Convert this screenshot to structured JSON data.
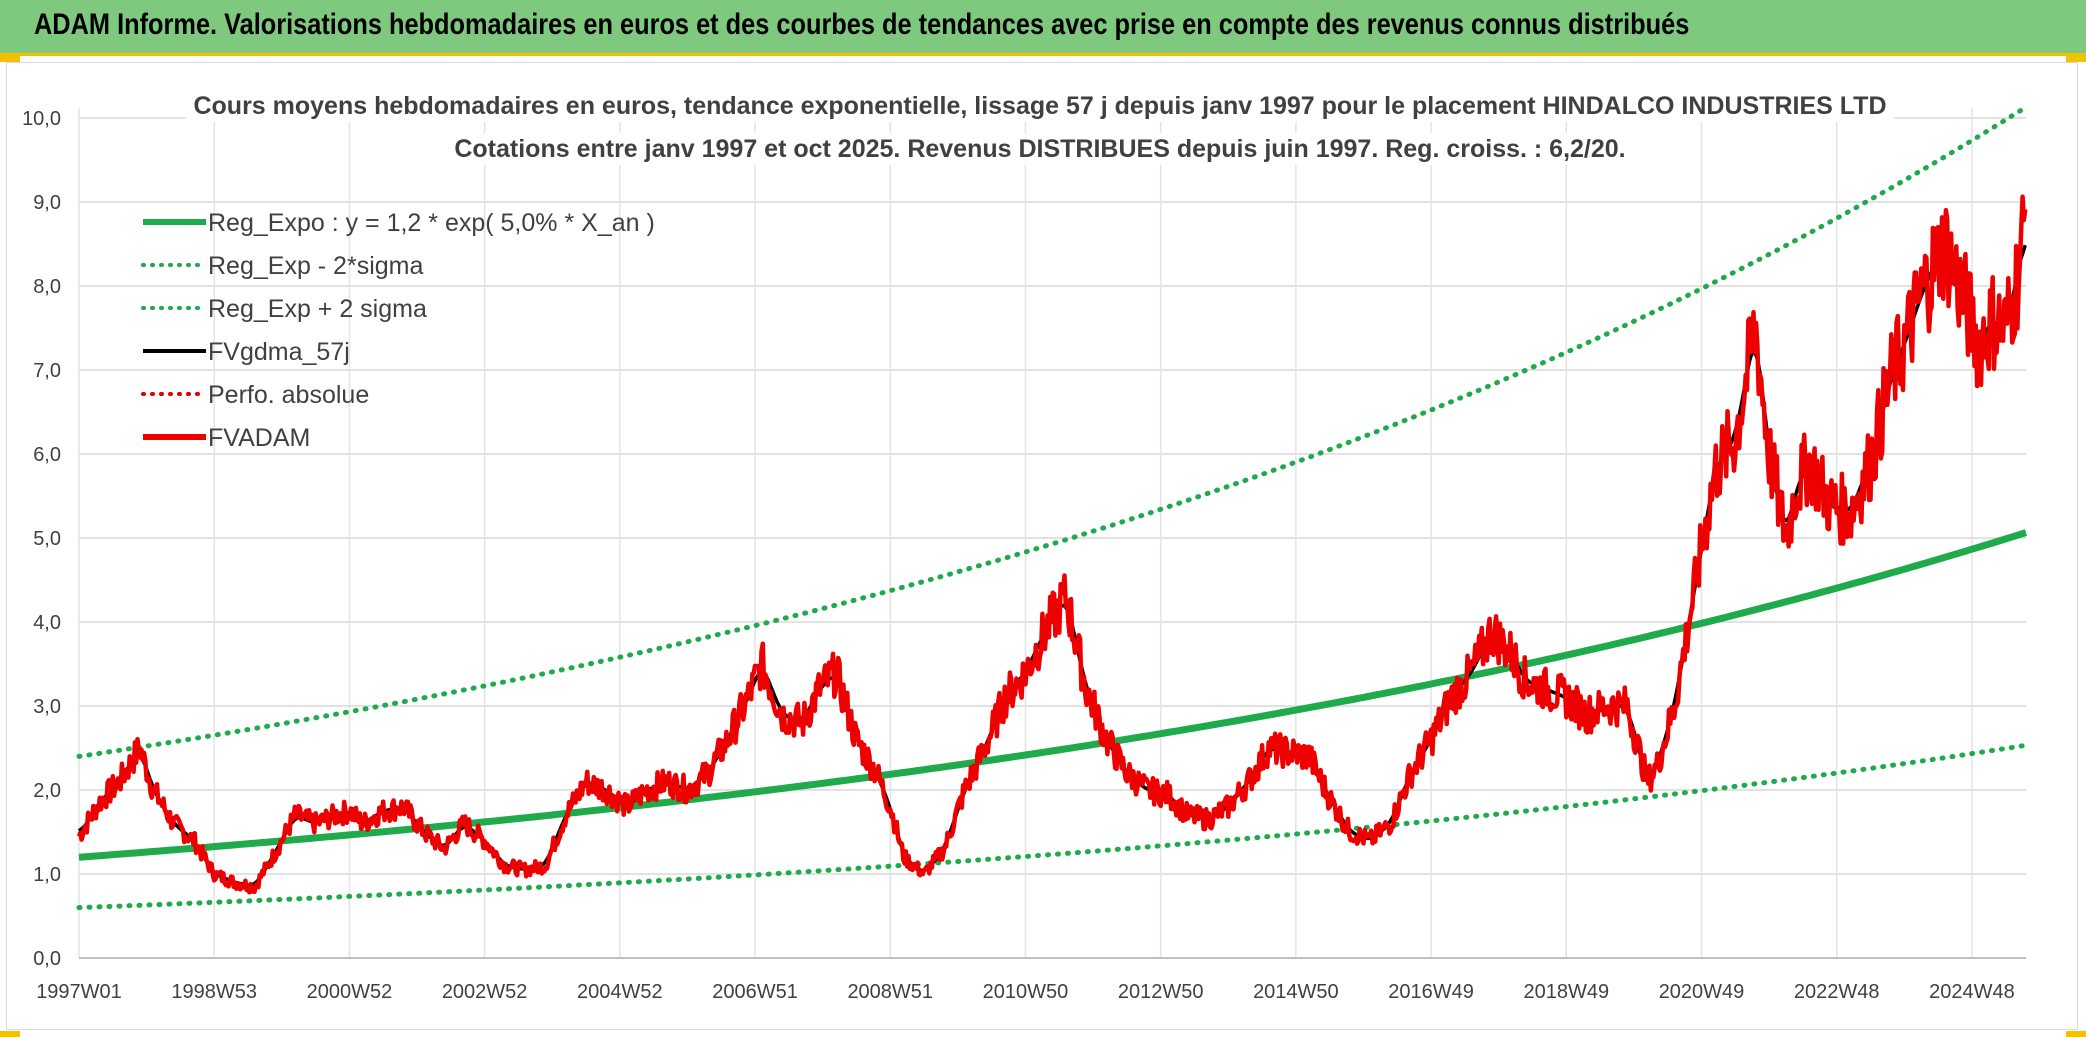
{
  "header": {
    "title": "ADAM Informe. Valorisations hebdomadaires en euros et des courbes de tendances avec prise en compte des revenus connus distribués"
  },
  "chart_data": {
    "type": "line",
    "title": [
      "Cours moyens hebdomadaires en euros, tendance exponentielle, lissage 57 j depuis janv 1997 pour le placement HINDALCO INDUSTRIES LTD",
      "Cotations entre janv 1997 et oct 2025. Revenus DISTRIBUES depuis juin 1997. Reg. croiss. : 6,2/20."
    ],
    "xlabel": "",
    "ylabel": "",
    "ylim": [
      0,
      10
    ],
    "xlim": [
      1997.0,
      2025.8
    ],
    "y_ticks": [
      "0,0",
      "1,0",
      "2,0",
      "3,0",
      "4,0",
      "5,0",
      "6,0",
      "7,0",
      "8,0",
      "9,0",
      "10,0"
    ],
    "x_ticks": [
      {
        "label": "1997W01",
        "x": 1997.0
      },
      {
        "label": "1998W53",
        "x": 1999.0
      },
      {
        "label": "2000W52",
        "x": 2001.0
      },
      {
        "label": "2002W52",
        "x": 2003.0
      },
      {
        "label": "2004W52",
        "x": 2005.0
      },
      {
        "label": "2006W51",
        "x": 2007.0
      },
      {
        "label": "2008W51",
        "x": 2009.0
      },
      {
        "label": "2010W50",
        "x": 2011.0
      },
      {
        "label": "2012W50",
        "x": 2013.0
      },
      {
        "label": "2014W50",
        "x": 2015.0
      },
      {
        "label": "2016W49",
        "x": 2017.0
      },
      {
        "label": "2018W49",
        "x": 2019.0
      },
      {
        "label": "2020W49",
        "x": 2021.0
      },
      {
        "label": "2022W48",
        "x": 2023.0
      },
      {
        "label": "2024W48",
        "x": 2025.0
      }
    ],
    "grid": true,
    "legend_position": "top-left",
    "regression": {
      "a": 1.2,
      "rate": 0.05,
      "x0": 1997.0,
      "sigma_factor": 2.0
    },
    "series": [
      {
        "name": "Reg_Expo : y = 1,2 * exp( 5,0% *  X_an )",
        "color": "#1faa4b",
        "style": "solid-thick",
        "kind": "reg"
      },
      {
        "name": "Reg_Exp - 2*sigma",
        "color": "#1faa4b",
        "style": "dotted",
        "kind": "reg_low"
      },
      {
        "name": "Reg_Exp + 2 sigma",
        "color": "#1faa4b",
        "style": "dotted",
        "kind": "reg_high"
      },
      {
        "name": "FVgdma_57j",
        "color": "#000000",
        "style": "solid",
        "kind": "smooth"
      },
      {
        "name": "Perfo. absolue",
        "color": "#e00000",
        "style": "dotted",
        "kind": "perfo"
      },
      {
        "name": "FVADAM",
        "color": "#ee0000",
        "style": "solid-thick",
        "kind": "price"
      }
    ],
    "price_points": {
      "x": [
        1997.0,
        1997.3,
        1997.6,
        1997.9,
        1998.1,
        1998.4,
        1998.7,
        1999.0,
        1999.3,
        1999.6,
        1999.9,
        2000.2,
        2000.5,
        2000.8,
        2001.0,
        2001.2,
        2001.5,
        2001.8,
        2002.1,
        2002.4,
        2002.7,
        2003.0,
        2003.3,
        2003.6,
        2003.9,
        2004.2,
        2004.5,
        2004.8,
        2005.1,
        2005.4,
        2005.7,
        2006.0,
        2006.3,
        2006.6,
        2006.9,
        2007.1,
        2007.4,
        2007.7,
        2007.95,
        2008.2,
        2008.5,
        2008.8,
        2009.0,
        2009.2,
        2009.5,
        2009.8,
        2010.1,
        2010.4,
        2010.7,
        2011.0,
        2011.3,
        2011.6,
        2011.9,
        2012.2,
        2012.5,
        2012.8,
        2013.1,
        2013.4,
        2013.7,
        2014.0,
        2014.3,
        2014.6,
        2014.9,
        2015.2,
        2015.5,
        2015.8,
        2016.1,
        2016.4,
        2016.7,
        2017.0,
        2017.3,
        2017.6,
        2017.9,
        2018.2,
        2018.4,
        2018.7,
        2019.0,
        2019.3,
        2019.6,
        2019.9,
        2020.2,
        2020.35,
        2020.6,
        2020.9,
        2021.2,
        2021.5,
        2021.8,
        2022.0,
        2022.25,
        2022.4,
        2022.6,
        2022.9,
        2023.2,
        2023.5,
        2023.8,
        2024.0,
        2024.3,
        2024.6,
        2024.9,
        2025.1,
        2025.3,
        2025.5,
        2025.7,
        2025.8
      ],
      "y": [
        1.45,
        1.85,
        2.1,
        2.5,
        2.0,
        1.6,
        1.4,
        1.0,
        0.9,
        0.85,
        1.25,
        1.7,
        1.6,
        1.7,
        1.75,
        1.6,
        1.75,
        1.8,
        1.5,
        1.3,
        1.6,
        1.4,
        1.1,
        1.05,
        1.1,
        1.7,
        2.1,
        2.0,
        1.8,
        2.0,
        2.1,
        2.0,
        2.2,
        2.6,
        3.1,
        3.5,
        2.9,
        2.8,
        3.2,
        3.4,
        2.6,
        2.2,
        1.8,
        1.2,
        1.0,
        1.3,
        2.0,
        2.5,
        3.1,
        3.4,
        3.9,
        4.3,
        3.2,
        2.6,
        2.2,
        2.0,
        1.95,
        1.7,
        1.65,
        1.8,
        2.1,
        2.5,
        2.45,
        2.4,
        1.9,
        1.5,
        1.4,
        1.6,
        2.2,
        2.6,
        3.1,
        3.4,
        3.9,
        3.6,
        3.3,
        3.2,
        3.1,
        2.9,
        3.0,
        3.0,
        2.1,
        2.3,
        3.0,
        4.4,
        5.8,
        6.2,
        7.5,
        6.0,
        5.0,
        5.6,
        5.9,
        5.4,
        5.3,
        5.9,
        6.9,
        7.3,
        8.0,
        8.5,
        7.8,
        7.3,
        7.6,
        7.5,
        8.2,
        8.9
      ]
    }
  }
}
